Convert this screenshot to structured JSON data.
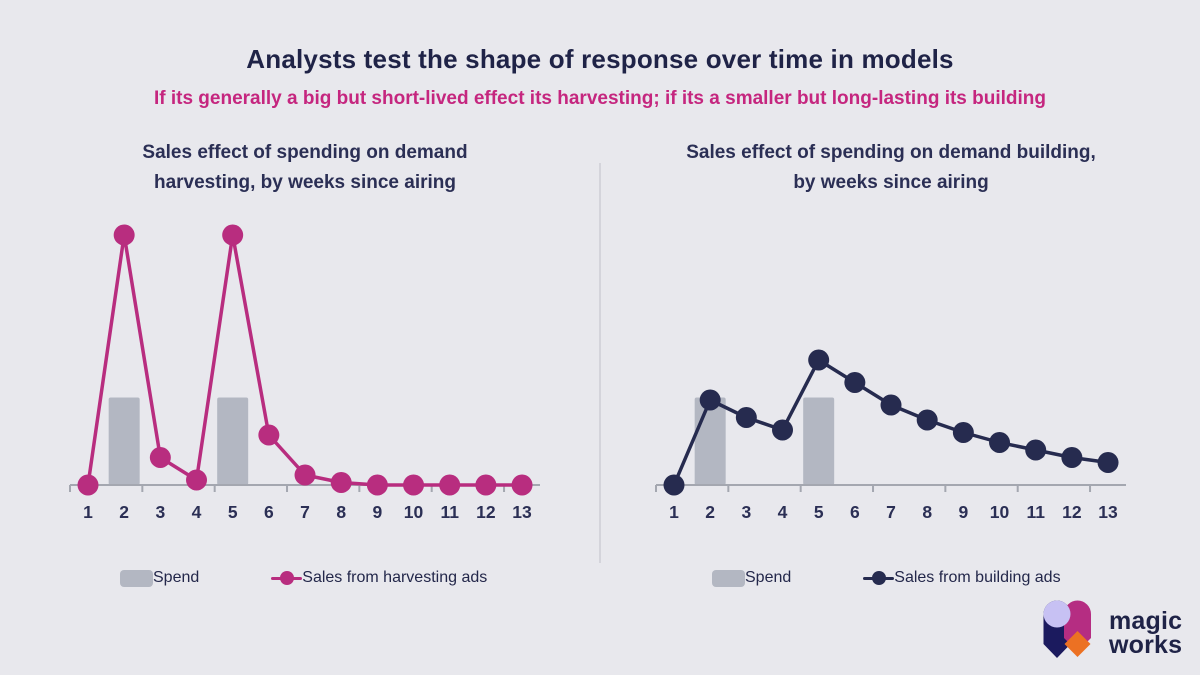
{
  "page": {
    "title": "Analysts test the shape of response over time in models",
    "subtitle": "If its generally a big but short-lived effect its harvesting; if its a smaller but long-lasting its building"
  },
  "colors": {
    "background": "#e8e8ed",
    "title_text": "#1f2347",
    "subtitle_text": "#c5267f",
    "chart_text": "#2b2f55",
    "axis": "#a4a7b0",
    "spend_bar": "#b3b7c2",
    "harvesting_line": "#b82d7f",
    "building_line": "#262b4f",
    "divider": "#d4d4db",
    "logo_lavender": "#c7c1f3",
    "logo_navy": "#1b1a5e",
    "logo_magenta": "#b52d82",
    "logo_orange": "#ec7123"
  },
  "chart_data": [
    {
      "type": "bar+line",
      "title": "Sales effect of spending on demand harvesting, by weeks since airing",
      "categories": [
        1,
        2,
        3,
        4,
        5,
        6,
        7,
        8,
        9,
        10,
        11,
        12,
        13
      ],
      "xlabel": "weeks since airing",
      "ylabel": "",
      "ylim": [
        0,
        105
      ],
      "grid": false,
      "y_axis_shown": false,
      "legend_position": "bottom",
      "series": [
        {
          "name": "Spend",
          "type": "bar",
          "color": "#b3b7c2",
          "values": [
            0,
            35,
            0,
            0,
            35,
            0,
            0,
            0,
            0,
            0,
            0,
            0,
            0
          ]
        },
        {
          "name": "Sales from harvesting ads",
          "type": "line",
          "color": "#b82d7f",
          "values": [
            0,
            100,
            11,
            2,
            100,
            20,
            4,
            1,
            0,
            0,
            0,
            0,
            0
          ]
        }
      ]
    },
    {
      "type": "bar+line",
      "title": "Sales effect of spending on demand building, by weeks since airing",
      "categories": [
        1,
        2,
        3,
        4,
        5,
        6,
        7,
        8,
        9,
        10,
        11,
        12,
        13
      ],
      "xlabel": "weeks since airing",
      "ylabel": "",
      "ylim": [
        0,
        105
      ],
      "grid": false,
      "y_axis_shown": false,
      "legend_position": "bottom",
      "series": [
        {
          "name": "Spend",
          "type": "bar",
          "color": "#b3b7c2",
          "values": [
            0,
            35,
            0,
            0,
            35,
            0,
            0,
            0,
            0,
            0,
            0,
            0,
            0
          ]
        },
        {
          "name": "Sales from building ads",
          "type": "line",
          "color": "#262b4f",
          "values": [
            0,
            34,
            27,
            22,
            50,
            41,
            32,
            26,
            21,
            17,
            14,
            11,
            9
          ]
        }
      ]
    }
  ],
  "logo": {
    "line1": "magic",
    "line2": "works"
  }
}
